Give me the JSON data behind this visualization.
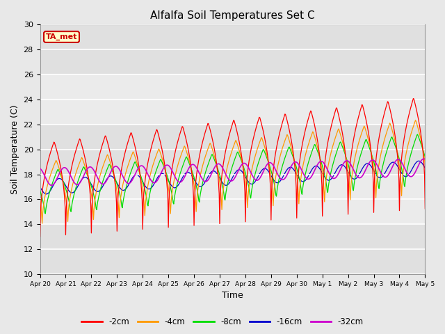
{
  "title": "Alfalfa Soil Temperatures Set C",
  "xlabel": "Time",
  "ylabel": "Soil Temperature (C)",
  "ylim": [
    10,
    30
  ],
  "colors": {
    "-2cm": "#ff0000",
    "-4cm": "#ff9900",
    "-8cm": "#00dd00",
    "-16cm": "#0000cc",
    "-32cm": "#cc00cc"
  },
  "fig_facecolor": "#e8e8e8",
  "ax_facecolor": "#e8e8e8",
  "ta_met_box": {
    "text": "TA_met",
    "facecolor": "#ffffcc",
    "edgecolor": "#cc0000",
    "textcolor": "#cc0000"
  },
  "x_tick_labels": [
    "Apr 20",
    "Apr 21",
    "Apr 22",
    "Apr 23",
    "Apr 24",
    "Apr 25",
    "Apr 26",
    "Apr 27",
    "Apr 28",
    "Apr 29",
    "Apr 30",
    "May 1",
    "May 2",
    "May 3",
    "May 4",
    "May 5"
  ],
  "days": 15
}
